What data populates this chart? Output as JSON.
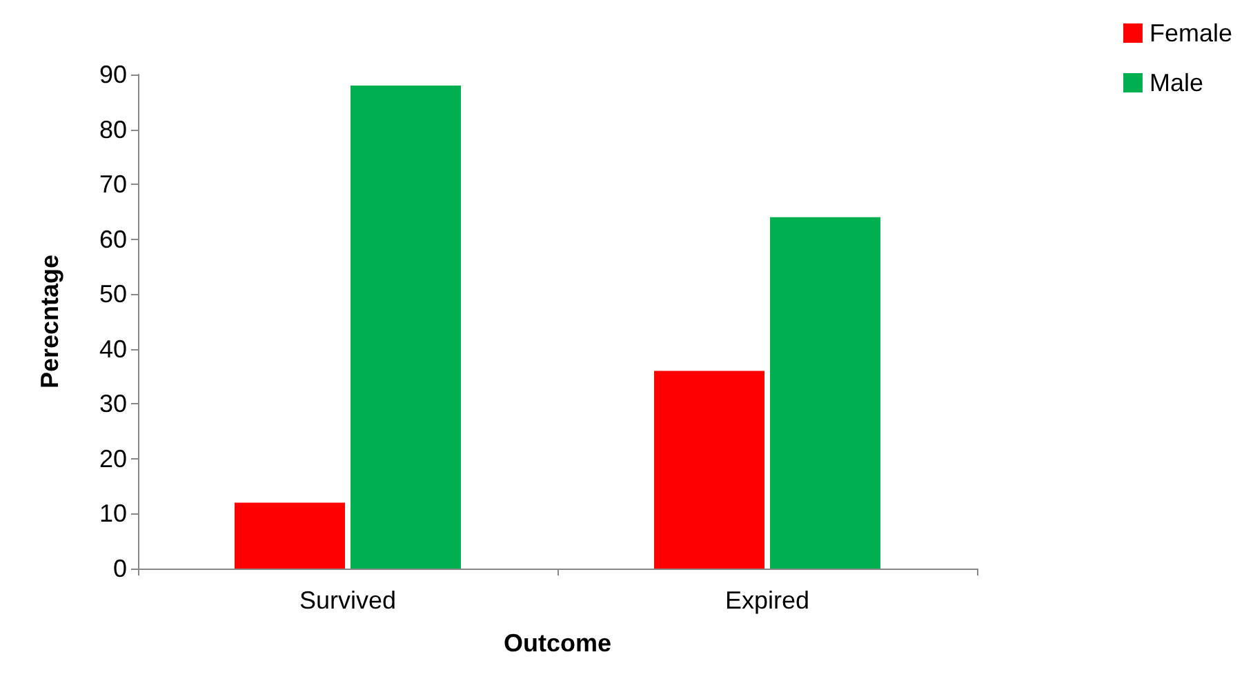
{
  "chart_data": {
    "type": "bar",
    "xlabel": "Outcome",
    "ylabel": "Perecntage",
    "categories": [
      "Survived",
      "Expired"
    ],
    "series": [
      {
        "name": "Female",
        "color": "#ff0000",
        "values": [
          12,
          36
        ]
      },
      {
        "name": "Male",
        "color": "#00b050",
        "values": [
          88,
          64
        ]
      }
    ],
    "ylim": [
      0,
      90
    ],
    "yticks": [
      0,
      10,
      20,
      30,
      40,
      50,
      60,
      70,
      80,
      90
    ],
    "grid": false,
    "legend": "top right"
  }
}
